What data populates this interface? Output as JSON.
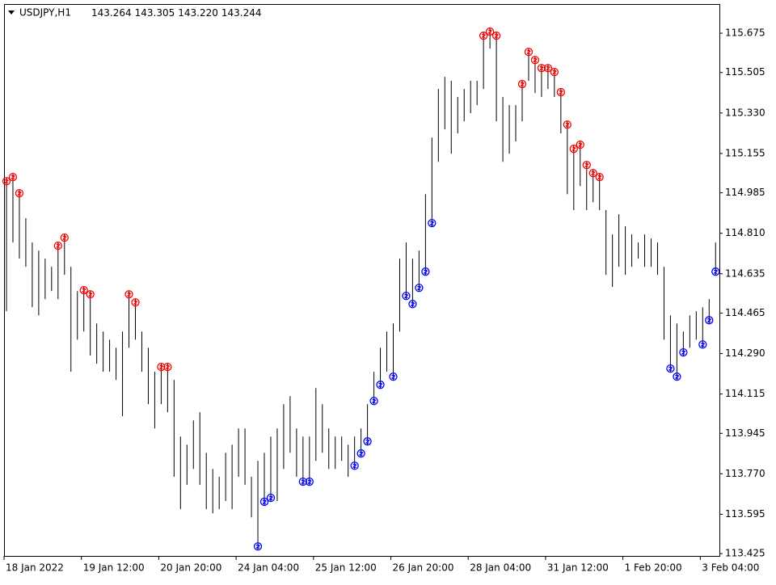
{
  "chart_data": {
    "type": "ohlc",
    "title": "USDJPY,H1",
    "header_values": [
      "143.264",
      "143.305",
      "143.220",
      "143.244"
    ],
    "categories": [
      "18 Jan 2022",
      null,
      null,
      null,
      null,
      null,
      null,
      null,
      null,
      null,
      null,
      null,
      "19 Jan 12:00",
      null,
      null,
      null,
      null,
      null,
      null,
      null,
      null,
      null,
      null,
      null,
      "20 Jan 20:00",
      null,
      null,
      null,
      null,
      null,
      null,
      null,
      null,
      null,
      null,
      null,
      "24 Jan 04:00",
      null,
      null,
      null,
      null,
      null,
      null,
      null,
      null,
      null,
      null,
      null,
      "25 Jan 12:00",
      null,
      null,
      null,
      null,
      null,
      null,
      null,
      null,
      null,
      null,
      null,
      "26 Jan 20:00",
      null,
      null,
      null,
      null,
      null,
      null,
      null,
      null,
      null,
      null,
      null,
      "28 Jan 04:00",
      null,
      null,
      null,
      null,
      null,
      null,
      null,
      null,
      null,
      null,
      null,
      "31 Jan 12:00",
      null,
      null,
      null,
      null,
      null,
      null,
      null,
      null,
      null,
      null,
      null,
      "1 Feb 20:00",
      null,
      null,
      null,
      null,
      null,
      null,
      null,
      null,
      null,
      null,
      null,
      "3 Feb 04:00",
      null,
      null
    ],
    "high": [
      115.049,
      115.067,
      114.997,
      114.875,
      114.77,
      114.735,
      114.7,
      114.665,
      114.77,
      114.805,
      114.665,
      114.56,
      114.578,
      114.56,
      114.42,
      114.385,
      114.35,
      114.315,
      114.385,
      114.56,
      114.525,
      114.385,
      114.315,
      114.211,
      114.246,
      114.246,
      114.176,
      113.931,
      113.896,
      114.001,
      114.036,
      113.861,
      113.791,
      113.757,
      113.861,
      113.896,
      113.966,
      113.966,
      113.757,
      113.826,
      113.861,
      113.931,
      113.966,
      114.071,
      114.106,
      113.966,
      113.931,
      113.931,
      114.141,
      114.071,
      113.966,
      113.931,
      113.931,
      113.896,
      113.931,
      113.966,
      114.071,
      114.211,
      114.315,
      114.385,
      114.42,
      114.7,
      114.77,
      114.7,
      114.735,
      114.979,
      115.224,
      115.434,
      115.486,
      115.469,
      115.399,
      115.434,
      115.469,
      115.469,
      115.678,
      115.696,
      115.678,
      115.399,
      115.364,
      115.364,
      115.469,
      115.608,
      115.573,
      115.538,
      115.538,
      115.521,
      115.434,
      115.294,
      115.189,
      115.207,
      115.119,
      115.084,
      115.067,
      114.91,
      114.805,
      114.892,
      114.84,
      114.805,
      114.77,
      114.805,
      114.787,
      114.77,
      114.665,
      114.455,
      114.42,
      114.385,
      114.455,
      114.473,
      114.49,
      114.525,
      114.77
    ],
    "low": [
      114.473,
      114.77,
      114.7,
      114.665,
      114.49,
      114.455,
      114.525,
      114.56,
      114.525,
      114.63,
      114.211,
      114.35,
      114.385,
      114.281,
      114.246,
      114.211,
      114.211,
      114.176,
      114.019,
      114.315,
      114.35,
      114.211,
      114.071,
      113.966,
      114.071,
      114.036,
      113.757,
      113.617,
      113.722,
      113.791,
      113.722,
      113.617,
      113.599,
      113.617,
      113.652,
      113.617,
      113.757,
      113.722,
      113.582,
      113.442,
      113.635,
      113.652,
      113.652,
      113.791,
      113.861,
      113.757,
      113.722,
      113.722,
      113.826,
      113.861,
      113.791,
      113.791,
      113.826,
      113.757,
      113.791,
      113.844,
      113.896,
      114.071,
      114.141,
      114.211,
      114.176,
      114.385,
      114.525,
      114.49,
      114.56,
      114.63,
      114.84,
      115.119,
      115.259,
      115.154,
      115.242,
      115.294,
      115.329,
      115.364,
      115.434,
      115.608,
      115.294,
      115.119,
      115.154,
      115.207,
      115.294,
      115.469,
      115.416,
      115.399,
      115.434,
      115.399,
      115.242,
      114.979,
      114.91,
      115.014,
      114.91,
      114.944,
      114.91,
      114.63,
      114.578,
      114.665,
      114.63,
      114.665,
      114.7,
      114.665,
      114.665,
      114.63,
      114.35,
      114.211,
      114.176,
      114.281,
      114.315,
      114.35,
      114.315,
      114.42,
      114.63
    ],
    "sell_signals": [
      0,
      1,
      2,
      8,
      9,
      12,
      13,
      19,
      20,
      24,
      25,
      74,
      75,
      76,
      80,
      81,
      82,
      83,
      84,
      85,
      86,
      87,
      88,
      89,
      90,
      91,
      92
    ],
    "buy_signals": [
      39,
      40,
      41,
      46,
      47,
      54,
      55,
      56,
      57,
      58,
      60,
      62,
      63,
      64,
      65,
      66,
      103,
      104,
      105,
      108,
      109,
      110
    ],
    "bar_color": "#000000",
    "sell_color": "#ff0000",
    "buy_color": "#0000ff",
    "ylim": [
      113.415,
      115.801
    ],
    "yticks": [
      115.675,
      115.505,
      {
        "value": 115.33,
        "label": "115.330"
      },
      115.155,
      114.985,
      {
        "value": 114.81,
        "label": "114.810"
      },
      114.635,
      114.465,
      {
        "value": 114.29,
        "label": "114.290"
      },
      114.115,
      113.945,
      {
        "value": 113.77,
        "label": "113.770"
      },
      113.595,
      113.425
    ]
  }
}
